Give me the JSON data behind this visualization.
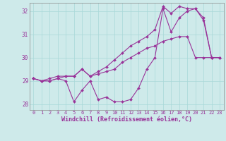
{
  "xlabel": "Windchill (Refroidissement éolien,°C)",
  "bg_color": "#ceeaea",
  "line_color": "#993399",
  "grid_color": "#a8d8d8",
  "xlim": [
    -0.5,
    23.5
  ],
  "ylim": [
    27.75,
    32.35
  ],
  "yticks": [
    28,
    29,
    30,
    31,
    32
  ],
  "xticks": [
    0,
    1,
    2,
    3,
    4,
    5,
    6,
    7,
    8,
    9,
    10,
    11,
    12,
    13,
    14,
    15,
    16,
    17,
    18,
    19,
    20,
    21,
    22,
    23
  ],
  "series1": [
    29.1,
    29.0,
    29.0,
    29.1,
    29.0,
    28.1,
    28.6,
    29.0,
    28.2,
    28.3,
    28.1,
    28.1,
    28.2,
    28.7,
    29.5,
    30.0,
    32.1,
    31.1,
    31.7,
    32.0,
    32.1,
    31.7,
    30.0,
    30.0
  ],
  "series2": [
    29.1,
    29.0,
    29.1,
    29.2,
    29.2,
    29.2,
    29.5,
    29.2,
    29.3,
    29.4,
    29.5,
    29.8,
    30.0,
    30.2,
    30.4,
    30.5,
    30.7,
    30.8,
    30.9,
    30.9,
    30.0,
    30.0,
    30.0,
    30.0
  ],
  "series3": [
    29.1,
    29.0,
    29.0,
    29.1,
    29.2,
    29.2,
    29.5,
    29.2,
    29.4,
    29.6,
    29.9,
    30.2,
    30.5,
    30.7,
    30.9,
    31.2,
    32.2,
    31.9,
    32.2,
    32.1,
    32.1,
    31.6,
    30.0,
    30.0
  ],
  "marker": "D",
  "markersize": 2.0,
  "linewidth": 0.8,
  "tick_fontsize": 5.0,
  "xlabel_fontsize": 6.0
}
